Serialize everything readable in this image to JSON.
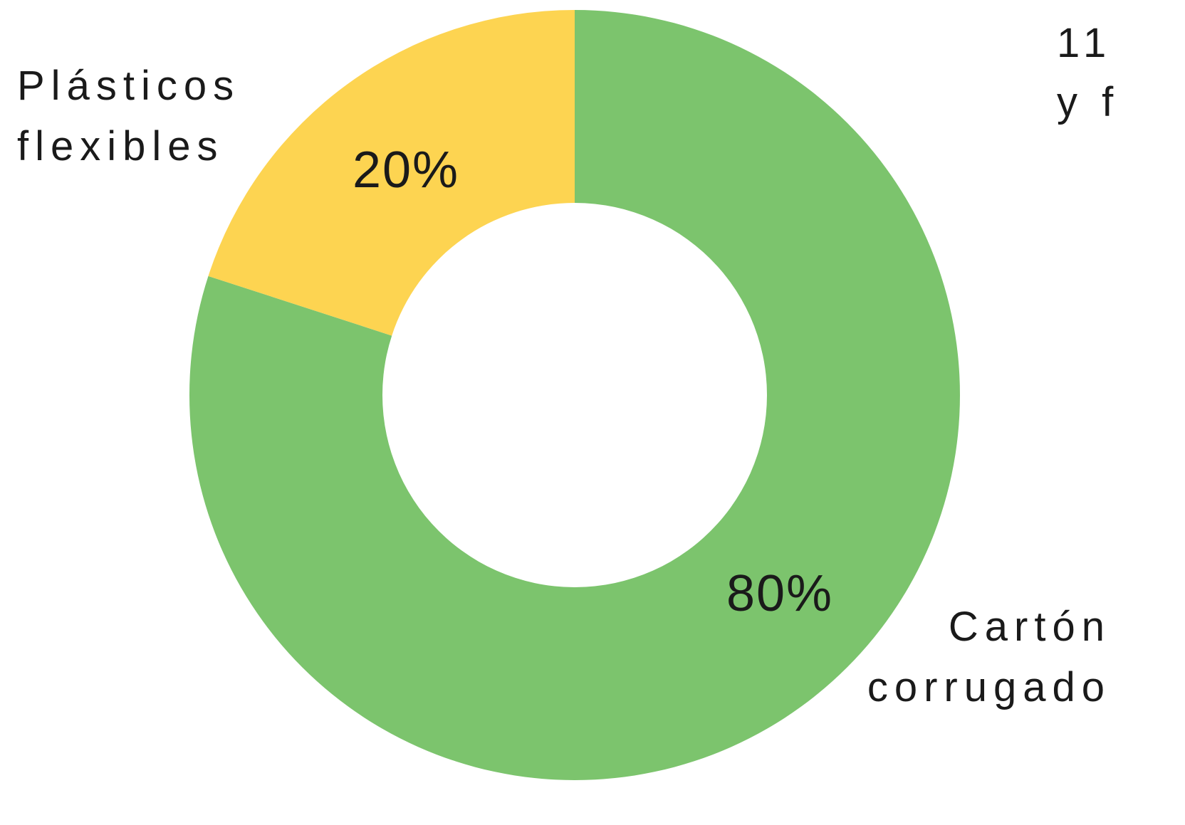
{
  "chart_data": {
    "type": "pie",
    "variant": "donut",
    "slices": [
      {
        "name": "Cartón corrugado",
        "label_lines": [
          "Cartón",
          "corrugado"
        ],
        "value": 80,
        "value_label": "80%",
        "color": "#7cc46d"
      },
      {
        "name": "Plásticos flexibles",
        "label_lines": [
          "Plásticos",
          "flexibles"
        ],
        "value": 20,
        "value_label": "20%",
        "color": "#fdd451"
      }
    ],
    "clipped_text_lines": [
      "11",
      "y f"
    ]
  }
}
